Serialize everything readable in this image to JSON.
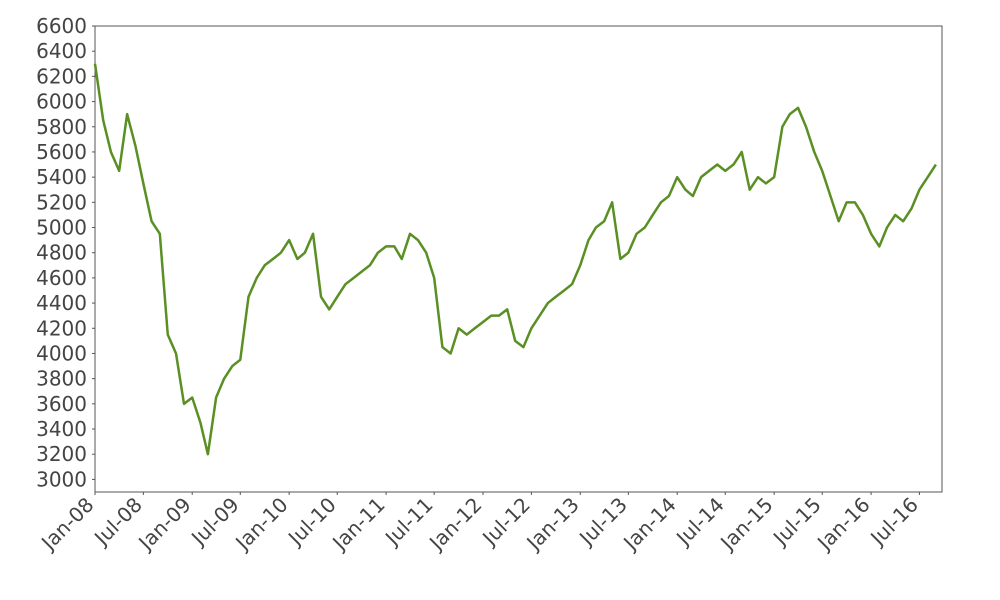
{
  "chart_data": {
    "type": "line",
    "x": [
      "2008-01-01",
      "2008-02-01",
      "2008-03-01",
      "2008-04-01",
      "2008-05-01",
      "2008-06-01",
      "2008-07-01",
      "2008-08-01",
      "2008-09-01",
      "2008-10-01",
      "2008-11-01",
      "2008-12-01",
      "2009-01-01",
      "2009-02-01",
      "2009-03-01",
      "2009-04-01",
      "2009-05-01",
      "2009-06-01",
      "2009-07-01",
      "2009-08-01",
      "2009-09-01",
      "2009-10-01",
      "2009-11-01",
      "2009-12-01",
      "2010-01-01",
      "2010-02-01",
      "2010-03-01",
      "2010-04-01",
      "2010-05-01",
      "2010-06-01",
      "2010-07-01",
      "2010-08-01",
      "2010-09-01",
      "2010-10-01",
      "2010-11-01",
      "2010-12-01",
      "2011-01-01",
      "2011-02-01",
      "2011-03-01",
      "2011-04-01",
      "2011-05-01",
      "2011-06-01",
      "2011-07-01",
      "2011-08-01",
      "2011-09-01",
      "2011-10-01",
      "2011-11-01",
      "2011-12-01",
      "2012-01-01",
      "2012-02-01",
      "2012-03-01",
      "2012-04-01",
      "2012-05-01",
      "2012-06-01",
      "2012-07-01",
      "2012-08-01",
      "2012-09-01",
      "2012-10-01",
      "2012-11-01",
      "2012-12-01",
      "2013-01-01",
      "2013-02-01",
      "2013-03-01",
      "2013-04-01",
      "2013-05-01",
      "2013-06-01",
      "2013-07-01",
      "2013-08-01",
      "2013-09-01",
      "2013-10-01",
      "2013-11-01",
      "2013-12-01",
      "2014-01-01",
      "2014-02-01",
      "2014-03-01",
      "2014-04-01",
      "2014-05-01",
      "2014-06-01",
      "2014-07-01",
      "2014-08-01",
      "2014-09-01",
      "2014-10-01",
      "2014-11-01",
      "2014-12-01",
      "2015-01-01",
      "2015-02-01",
      "2015-03-01",
      "2015-04-01",
      "2015-05-01",
      "2015-06-01",
      "2015-07-01",
      "2015-08-01",
      "2015-09-01",
      "2015-10-01",
      "2015-11-01",
      "2015-12-01",
      "2016-01-01",
      "2016-02-01",
      "2016-03-01",
      "2016-04-01",
      "2016-05-01",
      "2016-06-01",
      "2016-07-01",
      "2016-08-01",
      "2016-09-01"
    ],
    "series": [
      {
        "color": "#5a8f23",
        "values": [
          6300,
          5850,
          5600,
          5450,
          5900,
          5650,
          5350,
          5050,
          4950,
          4150,
          4000,
          3600,
          3650,
          3450,
          3200,
          3650,
          3800,
          3900,
          3950,
          4450,
          4600,
          4700,
          4750,
          4800,
          4900,
          4750,
          4800,
          4950,
          4450,
          4350,
          4450,
          4550,
          4600,
          4650,
          4700,
          4800,
          4850,
          4850,
          4750,
          4950,
          4900,
          4800,
          4600,
          4050,
          4000,
          4200,
          4150,
          4200,
          4250,
          4300,
          4300,
          4350,
          4100,
          4050,
          4200,
          4300,
          4400,
          4450,
          4500,
          4550,
          4700,
          4900,
          5000,
          5050,
          5200,
          4750,
          4800,
          4950,
          5000,
          5100,
          5200,
          5250,
          5400,
          5300,
          5250,
          5400,
          5450,
          5500,
          5450,
          5500,
          5600,
          5300,
          5400,
          5350,
          5400,
          5800,
          5900,
          5950,
          5800,
          5600,
          5450,
          5250,
          5050,
          5200,
          5200,
          5100,
          4950,
          4850,
          5000,
          5100,
          5050,
          5150,
          5300,
          5400,
          5500
        ]
      }
    ],
    "xlim": [
      "2008-01-01",
      "2016-09-24"
    ],
    "xticks": [
      {
        "value": "2008-01-01",
        "label": "Jan-08"
      },
      {
        "value": "2008-07-01",
        "label": "Jul-08"
      },
      {
        "value": "2009-01-01",
        "label": "Jan-09"
      },
      {
        "value": "2009-07-01",
        "label": "Jul-09"
      },
      {
        "value": "2010-01-01",
        "label": "Jan-10"
      },
      {
        "value": "2010-07-01",
        "label": "Jul-10"
      },
      {
        "value": "2011-01-01",
        "label": "Jan-11"
      },
      {
        "value": "2011-07-01",
        "label": "Jul-11"
      },
      {
        "value": "2012-01-01",
        "label": "Jan-12"
      },
      {
        "value": "2012-07-01",
        "label": "Jul-12"
      },
      {
        "value": "2013-01-01",
        "label": "Jan-13"
      },
      {
        "value": "2013-07-01",
        "label": "Jul-13"
      },
      {
        "value": "2014-01-01",
        "label": "Jan-14"
      },
      {
        "value": "2014-07-01",
        "label": "Jul-14"
      },
      {
        "value": "2015-01-01",
        "label": "Jan-15"
      },
      {
        "value": "2015-07-01",
        "label": "Jul-15"
      },
      {
        "value": "2016-01-01",
        "label": "Jan-16"
      },
      {
        "value": "2016-07-01",
        "label": "Jul-16"
      }
    ],
    "ylim": [
      2900,
      6600
    ],
    "yticks": [
      3000,
      3200,
      3400,
      3600,
      3800,
      4000,
      4200,
      4400,
      4600,
      4800,
      5000,
      5200,
      5400,
      5600,
      5800,
      6000,
      6200,
      6400,
      6600
    ]
  }
}
